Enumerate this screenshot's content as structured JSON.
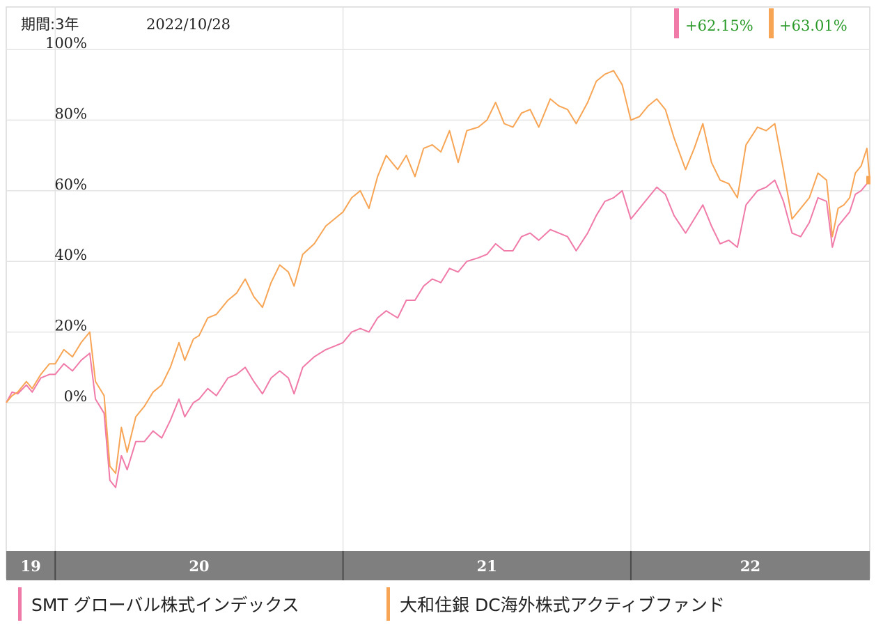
{
  "chart_data": {
    "type": "line",
    "period_label": "期間:3年",
    "date_label": "2022/10/28",
    "ylim": [
      -30,
      102
    ],
    "yticks": [
      {
        "value": 100,
        "label": "100%"
      },
      {
        "value": 80,
        "label": "80%"
      },
      {
        "value": 60,
        "label": "60%"
      },
      {
        "value": 40,
        "label": "40%"
      },
      {
        "value": 20,
        "label": "20%"
      },
      {
        "value": 0,
        "label": "0%"
      }
    ],
    "x_range": [
      2019.83,
      2022.83
    ],
    "year_bands": [
      {
        "label": "19",
        "start": 2019.83,
        "end": 2020.0
      },
      {
        "label": "20",
        "start": 2020.0,
        "end": 2021.0
      },
      {
        "label": "21",
        "start": 2021.0,
        "end": 2022.0
      },
      {
        "label": "22",
        "start": 2022.0,
        "end": 2022.83
      }
    ],
    "colors": {
      "smt": "#f07aa8",
      "daiwa": "#f7a555",
      "return_text": "#2a9a2a",
      "band": "#7f7f7f"
    },
    "series": [
      {
        "name": "SMT グローバル株式インデックス",
        "key": "smt",
        "color": "#f07aa8",
        "return_label": "+62.15%",
        "points": [
          [
            2019.83,
            0
          ],
          [
            2019.85,
            3
          ],
          [
            2019.87,
            2.5
          ],
          [
            2019.9,
            5
          ],
          [
            2019.92,
            3
          ],
          [
            2019.95,
            7
          ],
          [
            2019.98,
            8
          ],
          [
            2020.0,
            8
          ],
          [
            2020.03,
            11
          ],
          [
            2020.06,
            9
          ],
          [
            2020.09,
            12
          ],
          [
            2020.12,
            14
          ],
          [
            2020.14,
            1
          ],
          [
            2020.17,
            -3
          ],
          [
            2020.19,
            -22
          ],
          [
            2020.21,
            -24
          ],
          [
            2020.23,
            -15
          ],
          [
            2020.25,
            -19
          ],
          [
            2020.28,
            -11
          ],
          [
            2020.31,
            -11
          ],
          [
            2020.34,
            -8
          ],
          [
            2020.37,
            -10
          ],
          [
            2020.4,
            -5
          ],
          [
            2020.43,
            1
          ],
          [
            2020.45,
            -4
          ],
          [
            2020.48,
            0
          ],
          [
            2020.5,
            1
          ],
          [
            2020.53,
            4
          ],
          [
            2020.56,
            2
          ],
          [
            2020.6,
            7
          ],
          [
            2020.63,
            8
          ],
          [
            2020.66,
            10
          ],
          [
            2020.69,
            6
          ],
          [
            2020.72,
            2.5
          ],
          [
            2020.75,
            7
          ],
          [
            2020.78,
            9
          ],
          [
            2020.81,
            7
          ],
          [
            2020.83,
            2.5
          ],
          [
            2020.86,
            10
          ],
          [
            2020.9,
            13
          ],
          [
            2020.94,
            15
          ],
          [
            2020.97,
            16
          ],
          [
            2021.0,
            17
          ],
          [
            2021.03,
            20
          ],
          [
            2021.06,
            21
          ],
          [
            2021.09,
            20
          ],
          [
            2021.12,
            24
          ],
          [
            2021.15,
            26
          ],
          [
            2021.19,
            24
          ],
          [
            2021.22,
            29
          ],
          [
            2021.25,
            29
          ],
          [
            2021.28,
            33
          ],
          [
            2021.31,
            35
          ],
          [
            2021.34,
            34
          ],
          [
            2021.37,
            38
          ],
          [
            2021.4,
            37
          ],
          [
            2021.43,
            40
          ],
          [
            2021.47,
            41
          ],
          [
            2021.5,
            42
          ],
          [
            2021.53,
            45
          ],
          [
            2021.56,
            43
          ],
          [
            2021.59,
            43
          ],
          [
            2021.62,
            47
          ],
          [
            2021.65,
            48
          ],
          [
            2021.68,
            46
          ],
          [
            2021.72,
            49
          ],
          [
            2021.75,
            48
          ],
          [
            2021.78,
            47
          ],
          [
            2021.81,
            43
          ],
          [
            2021.85,
            48
          ],
          [
            2021.88,
            53
          ],
          [
            2021.91,
            57
          ],
          [
            2021.94,
            58
          ],
          [
            2021.97,
            60
          ],
          [
            2022.0,
            52
          ],
          [
            2022.03,
            55
          ],
          [
            2022.06,
            58
          ],
          [
            2022.09,
            61
          ],
          [
            2022.12,
            59
          ],
          [
            2022.15,
            53
          ],
          [
            2022.19,
            48
          ],
          [
            2022.22,
            52
          ],
          [
            2022.25,
            56
          ],
          [
            2022.28,
            50
          ],
          [
            2022.31,
            45
          ],
          [
            2022.34,
            46
          ],
          [
            2022.37,
            44
          ],
          [
            2022.4,
            56
          ],
          [
            2022.44,
            60
          ],
          [
            2022.47,
            61
          ],
          [
            2022.5,
            63
          ],
          [
            2022.53,
            57
          ],
          [
            2022.56,
            48
          ],
          [
            2022.59,
            47
          ],
          [
            2022.62,
            51
          ],
          [
            2022.65,
            58
          ],
          [
            2022.68,
            57
          ],
          [
            2022.7,
            44
          ],
          [
            2022.72,
            50
          ],
          [
            2022.74,
            52
          ],
          [
            2022.76,
            54
          ],
          [
            2022.78,
            59
          ],
          [
            2022.8,
            60
          ],
          [
            2022.82,
            62
          ],
          [
            2022.83,
            62.15
          ]
        ]
      },
      {
        "name": "大和住銀 DC海外株式アクティブファンド",
        "key": "daiwa",
        "color": "#f7a555",
        "return_label": "+63.01%",
        "points": [
          [
            2019.83,
            0
          ],
          [
            2019.85,
            2
          ],
          [
            2019.87,
            3
          ],
          [
            2019.9,
            6
          ],
          [
            2019.92,
            4
          ],
          [
            2019.95,
            8
          ],
          [
            2019.98,
            11
          ],
          [
            2020.0,
            11
          ],
          [
            2020.03,
            15
          ],
          [
            2020.06,
            13
          ],
          [
            2020.09,
            17
          ],
          [
            2020.12,
            20
          ],
          [
            2020.14,
            6
          ],
          [
            2020.17,
            2
          ],
          [
            2020.19,
            -18
          ],
          [
            2020.21,
            -20
          ],
          [
            2020.23,
            -7
          ],
          [
            2020.25,
            -14
          ],
          [
            2020.28,
            -4
          ],
          [
            2020.31,
            -1
          ],
          [
            2020.34,
            3
          ],
          [
            2020.37,
            5
          ],
          [
            2020.4,
            10
          ],
          [
            2020.43,
            17
          ],
          [
            2020.45,
            12
          ],
          [
            2020.48,
            18
          ],
          [
            2020.5,
            19
          ],
          [
            2020.53,
            24
          ],
          [
            2020.56,
            25
          ],
          [
            2020.6,
            29
          ],
          [
            2020.63,
            31
          ],
          [
            2020.66,
            35
          ],
          [
            2020.69,
            30
          ],
          [
            2020.72,
            27
          ],
          [
            2020.75,
            34
          ],
          [
            2020.78,
            39
          ],
          [
            2020.81,
            37
          ],
          [
            2020.83,
            33
          ],
          [
            2020.86,
            42
          ],
          [
            2020.9,
            45
          ],
          [
            2020.94,
            50
          ],
          [
            2020.97,
            52
          ],
          [
            2021.0,
            54
          ],
          [
            2021.03,
            58
          ],
          [
            2021.06,
            60
          ],
          [
            2021.09,
            55
          ],
          [
            2021.12,
            64
          ],
          [
            2021.15,
            70
          ],
          [
            2021.19,
            66
          ],
          [
            2021.22,
            70
          ],
          [
            2021.25,
            64
          ],
          [
            2021.28,
            72
          ],
          [
            2021.31,
            73
          ],
          [
            2021.34,
            71
          ],
          [
            2021.37,
            77
          ],
          [
            2021.4,
            68
          ],
          [
            2021.43,
            77
          ],
          [
            2021.47,
            78
          ],
          [
            2021.5,
            80
          ],
          [
            2021.53,
            85
          ],
          [
            2021.56,
            79
          ],
          [
            2021.59,
            78
          ],
          [
            2021.62,
            82
          ],
          [
            2021.65,
            83
          ],
          [
            2021.68,
            78
          ],
          [
            2021.72,
            86
          ],
          [
            2021.75,
            84
          ],
          [
            2021.78,
            83
          ],
          [
            2021.81,
            79
          ],
          [
            2021.85,
            85
          ],
          [
            2021.88,
            91
          ],
          [
            2021.91,
            93
          ],
          [
            2021.94,
            94
          ],
          [
            2021.97,
            90
          ],
          [
            2022.0,
            80
          ],
          [
            2022.03,
            81
          ],
          [
            2022.06,
            84
          ],
          [
            2022.09,
            86
          ],
          [
            2022.12,
            83
          ],
          [
            2022.15,
            75
          ],
          [
            2022.19,
            66
          ],
          [
            2022.22,
            72
          ],
          [
            2022.25,
            79
          ],
          [
            2022.28,
            68
          ],
          [
            2022.31,
            63
          ],
          [
            2022.34,
            62
          ],
          [
            2022.37,
            58
          ],
          [
            2022.4,
            73
          ],
          [
            2022.44,
            78
          ],
          [
            2022.47,
            77
          ],
          [
            2022.5,
            79
          ],
          [
            2022.53,
            66
          ],
          [
            2022.56,
            52
          ],
          [
            2022.59,
            55
          ],
          [
            2022.62,
            58
          ],
          [
            2022.65,
            65
          ],
          [
            2022.68,
            63
          ],
          [
            2022.7,
            47
          ],
          [
            2022.72,
            55
          ],
          [
            2022.74,
            56
          ],
          [
            2022.76,
            58
          ],
          [
            2022.78,
            65
          ],
          [
            2022.8,
            67
          ],
          [
            2022.82,
            72
          ],
          [
            2022.83,
            63.01
          ]
        ]
      }
    ]
  }
}
